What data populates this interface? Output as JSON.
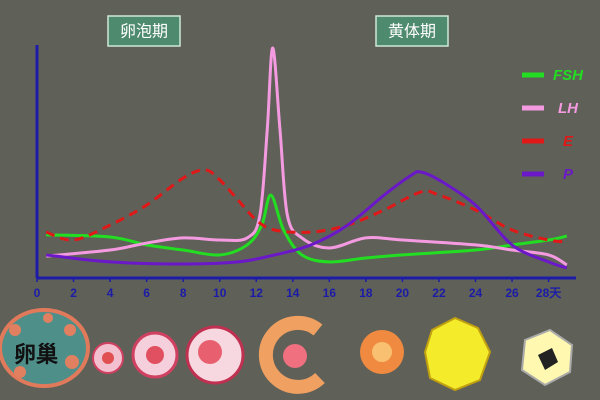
{
  "chart_data": {
    "type": "line",
    "annotations": [
      "卵泡期",
      "黄体期",
      "卵巢"
    ],
    "xlim": [
      0,
      29.5
    ],
    "xticks": [
      0,
      2,
      4,
      6,
      8,
      10,
      12,
      14,
      16,
      18,
      20,
      22,
      24,
      26,
      {
        "value": 28,
        "label": "28天"
      }
    ],
    "ylim": [
      0,
      100
    ],
    "legend": "top-right",
    "series": [
      {
        "name": "FSH",
        "color": "#22dd22",
        "style": "solid",
        "x": [
          0.5,
          4,
          6,
          8,
          10,
          11.5,
          12.3,
          12.8,
          13.5,
          14.5,
          16,
          18,
          20,
          24,
          26,
          28,
          29
        ],
        "values": [
          18.5,
          17.6,
          14.2,
          12,
          9.9,
          14.2,
          22.7,
          35.6,
          20.6,
          9.9,
          6.9,
          8.6,
          9.9,
          12,
          14.2,
          16.3,
          18
        ]
      },
      {
        "name": "LH",
        "color": "#f49ae0",
        "style": "solid",
        "x": [
          0.5,
          4,
          6,
          8,
          10,
          11.5,
          12.2,
          12.6,
          12.9,
          13.3,
          13.7,
          14.5,
          16,
          18,
          20,
          24,
          26,
          28,
          29
        ],
        "values": [
          9.4,
          12,
          15,
          17.2,
          16.3,
          17.2,
          27,
          63.5,
          98.7,
          63.5,
          27,
          17.2,
          12.9,
          17.2,
          16.3,
          14.2,
          12,
          9.9,
          5.6
        ]
      },
      {
        "name": "E",
        "color": "#e01818",
        "style": "dashed",
        "x": [
          0.5,
          2,
          4,
          6,
          8,
          9.2,
          10,
          11,
          12,
          13,
          15,
          17,
          19,
          21,
          22,
          24,
          26,
          28,
          29
        ],
        "values": [
          19.7,
          16.3,
          22.7,
          31.3,
          42.9,
          46.4,
          42.1,
          33.5,
          24.9,
          20.6,
          19.7,
          22.7,
          29.2,
          36.9,
          35.6,
          29.2,
          20.6,
          16.3,
          15.5
        ]
      },
      {
        "name": "P",
        "color": "#6a18c8",
        "style": "solid",
        "x": [
          0.5,
          4,
          8,
          11,
          13,
          15,
          17,
          19,
          20.5,
          21,
          22,
          24,
          26,
          28,
          29
        ],
        "values": [
          9.9,
          6.9,
          6,
          6.9,
          9.9,
          14.2,
          22.7,
          35.6,
          44.2,
          45.5,
          42.1,
          31.3,
          14.2,
          6.9,
          4.3
        ]
      }
    ]
  }
}
